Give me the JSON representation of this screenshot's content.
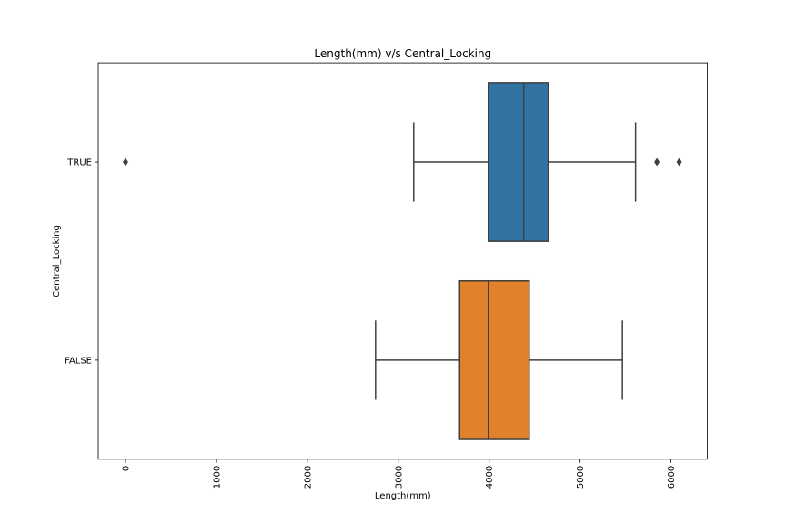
{
  "chart_data": {
    "type": "boxplot",
    "orientation": "horizontal",
    "title": "Length(mm) v/s Central_Locking",
    "xlabel": "Length(mm)",
    "ylabel": "Central_Locking",
    "xlim": [
      -300,
      6400
    ],
    "xticks": [
      0,
      1000,
      2000,
      3000,
      4000,
      5000,
      6000
    ],
    "xtick_rotation": 90,
    "grid": false,
    "categories": [
      "TRUE",
      "FALSE"
    ],
    "series": [
      {
        "category": "TRUE",
        "color": "#3274a1",
        "whisker_low": 3170,
        "q1": 3990,
        "median": 4380,
        "q3": 4650,
        "whisker_high": 5610,
        "outliers": [
          0,
          5845,
          6090
        ]
      },
      {
        "category": "FALSE",
        "color": "#e1812c",
        "whisker_low": 2750,
        "q1": 3675,
        "median": 3990,
        "q3": 4440,
        "whisker_high": 5465,
        "outliers": []
      }
    ]
  }
}
